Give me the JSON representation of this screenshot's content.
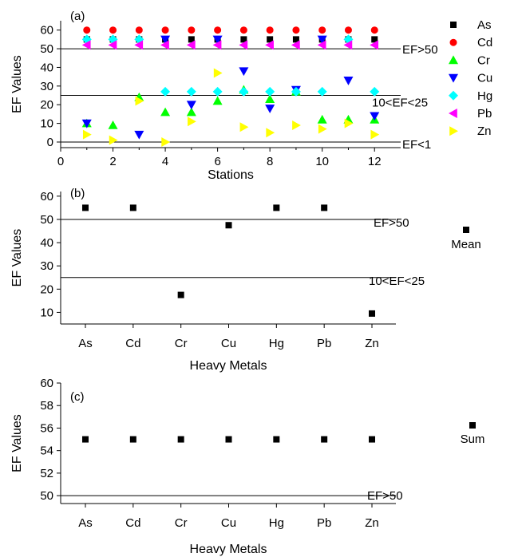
{
  "chart_data": [
    {
      "type": "scatter",
      "panel_label": "(a)",
      "xlabel": "Stations",
      "ylabel": "EF Values",
      "xlim": [
        0,
        13
      ],
      "ylim": [
        -3,
        65
      ],
      "x_ticks": [
        0,
        2,
        4,
        6,
        8,
        10,
        12
      ],
      "y_ticks": [
        0,
        10,
        20,
        30,
        40,
        50,
        60
      ],
      "grid": false,
      "legend_position": "right",
      "reference_lines": [
        {
          "y": 50,
          "label": "EF>50"
        },
        {
          "y": 25,
          "label": "10<EF<25"
        },
        {
          "y": 0,
          "label": "EF<1"
        }
      ],
      "series": [
        {
          "name": "As",
          "marker": "square",
          "color": "#000000",
          "x": [
            1,
            2,
            3,
            4,
            5,
            6,
            7,
            8,
            9,
            10,
            11,
            12
          ],
          "y": [
            55,
            55,
            55,
            55,
            55,
            55,
            55,
            55,
            55,
            55,
            55,
            55
          ]
        },
        {
          "name": "Cd",
          "marker": "circle",
          "color": "#ff0000",
          "x": [
            1,
            2,
            3,
            4,
            5,
            6,
            7,
            8,
            9,
            10,
            11,
            12
          ],
          "y": [
            60,
            60,
            60,
            60,
            60,
            60,
            60,
            60,
            60,
            60,
            60,
            60
          ]
        },
        {
          "name": "Cr",
          "marker": "triangle-up",
          "color": "#00ff00",
          "x": [
            1,
            2,
            3,
            4,
            5,
            6,
            7,
            8,
            9,
            10,
            11,
            12
          ],
          "y": [
            10,
            9,
            24,
            16,
            16,
            22,
            28,
            23,
            27,
            12,
            12,
            12
          ]
        },
        {
          "name": "Cu",
          "marker": "triangle-down",
          "color": "#0000ff",
          "x": [
            1,
            2,
            3,
            4,
            5,
            6,
            7,
            8,
            9,
            10,
            11,
            12
          ],
          "y": [
            10,
            null,
            4,
            55,
            20,
            55,
            38,
            18,
            28,
            55,
            33,
            14
          ]
        },
        {
          "name": "Hg",
          "marker": "diamond",
          "color": "#00ffff",
          "x": [
            1,
            2,
            3,
            4,
            5,
            6,
            7,
            8,
            9,
            10,
            11,
            12
          ],
          "y": [
            55,
            55,
            55,
            27,
            27,
            27,
            27,
            27,
            27,
            27,
            55,
            27
          ]
        },
        {
          "name": "Pb",
          "marker": "triangle-left",
          "color": "#ff00ff",
          "x": [
            1,
            2,
            3,
            4,
            5,
            6,
            7,
            8,
            9,
            10,
            11,
            12
          ],
          "y": [
            52,
            52,
            52,
            52,
            52,
            52,
            52,
            52,
            52,
            52,
            52,
            52
          ]
        },
        {
          "name": "Zn",
          "marker": "triangle-right",
          "color": "#ffff00",
          "x": [
            1,
            2,
            3,
            4,
            5,
            6,
            7,
            8,
            9,
            10,
            11,
            12
          ],
          "y": [
            4,
            1,
            22,
            0,
            11,
            37,
            8,
            5,
            9,
            7,
            10,
            4
          ]
        }
      ]
    },
    {
      "type": "scatter",
      "panel_label": "(b)",
      "xlabel": "Heavy Metals",
      "ylabel": "EF Values",
      "categories": [
        "As",
        "Cd",
        "Cr",
        "Cu",
        "Hg",
        "Pb",
        "Zn"
      ],
      "ylim": [
        5,
        62
      ],
      "y_ticks": [
        10,
        20,
        30,
        40,
        50,
        60
      ],
      "grid": false,
      "legend_position": "right",
      "reference_lines": [
        {
          "y": 50,
          "label": "EF>50"
        },
        {
          "y": 25,
          "label": "10<EF<25"
        }
      ],
      "series": [
        {
          "name": "Mean",
          "marker": "square",
          "color": "#000000",
          "values": [
            55,
            55,
            17.5,
            47.5,
            55,
            55,
            9.5
          ]
        }
      ]
    },
    {
      "type": "scatter",
      "panel_label": "(c)",
      "xlabel": "Heavy Metals",
      "ylabel": "EF Values",
      "categories": [
        "As",
        "Cd",
        "Cr",
        "Cu",
        "Hg",
        "Pb",
        "Zn"
      ],
      "ylim": [
        49.3,
        60
      ],
      "y_ticks": [
        50,
        52,
        54,
        56,
        58,
        60
      ],
      "grid": false,
      "legend_position": "right",
      "reference_lines": [
        {
          "y": 50,
          "label": "EF>50"
        }
      ],
      "series": [
        {
          "name": "Sum",
          "marker": "square",
          "color": "#000000",
          "values": [
            55,
            55,
            55,
            55,
            55,
            55,
            55
          ]
        }
      ]
    }
  ]
}
